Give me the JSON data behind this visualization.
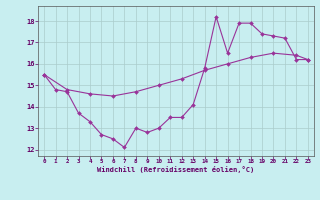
{
  "xlabel": "Windchill (Refroidissement éolien,°C)",
  "background_color": "#c8eef0",
  "line_color": "#993399",
  "grid_color": "#aacccc",
  "xlim": [
    -0.5,
    23.5
  ],
  "ylim": [
    11.7,
    18.7
  ],
  "yticks": [
    12,
    13,
    14,
    15,
    16,
    17,
    18
  ],
  "xticks": [
    0,
    1,
    2,
    3,
    4,
    5,
    6,
    7,
    8,
    9,
    10,
    11,
    12,
    13,
    14,
    15,
    16,
    17,
    18,
    19,
    20,
    21,
    22,
    23
  ],
  "line1_x": [
    0,
    1,
    2,
    3,
    4,
    5,
    6,
    7,
    8,
    9,
    10,
    11,
    12,
    13,
    14,
    15,
    16,
    17,
    18,
    19,
    20,
    21,
    22,
    23
  ],
  "line1_y": [
    15.5,
    14.8,
    14.7,
    13.7,
    13.3,
    12.7,
    12.5,
    12.1,
    13.0,
    12.8,
    13.0,
    13.5,
    13.5,
    14.1,
    15.8,
    18.2,
    16.5,
    17.9,
    17.9,
    17.4,
    17.3,
    17.2,
    16.2,
    16.2
  ],
  "line2_x": [
    0,
    2,
    4,
    6,
    8,
    10,
    12,
    14,
    16,
    18,
    20,
    22,
    23
  ],
  "line2_y": [
    15.5,
    14.8,
    14.6,
    14.5,
    14.7,
    15.0,
    15.3,
    15.7,
    16.0,
    16.3,
    16.5,
    16.4,
    16.2
  ]
}
